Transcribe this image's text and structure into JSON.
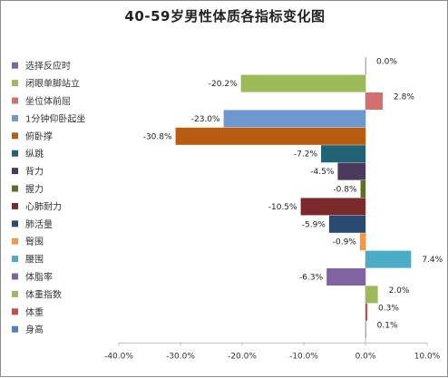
{
  "chart_data": {
    "type": "bar",
    "orientation": "horizontal",
    "title": "40-59岁男性体质各指标变化图",
    "xlim": [
      -40,
      10
    ],
    "x_ticks": [
      "-40.0%",
      "-30.0%",
      "-20.0%",
      "-10.0%",
      "0.0%",
      "10.0%"
    ],
    "x_tick_values": [
      -40,
      -30,
      -20,
      -10,
      0,
      10
    ],
    "grid": false,
    "legend": "left",
    "categories": [
      "选择反应时",
      "闭眼单脚站立",
      "坐位体前屈",
      "1分钟仰卧起坐",
      "俯卧撑",
      "纵跳",
      "背力",
      "握力",
      "心肺耐力",
      "肺活量",
      "臀围",
      "腰围",
      "体脂率",
      "体重指数",
      "体重",
      "身高"
    ],
    "values": [
      0.0,
      -20.2,
      2.8,
      -23.0,
      -30.8,
      -7.2,
      -4.5,
      -0.8,
      -10.5,
      -5.9,
      -0.9,
      7.4,
      -6.3,
      2.0,
      0.3,
      0.1
    ],
    "value_labels": [
      "0.0%",
      "-20.2%",
      "2.8%",
      "-23.0%",
      "-30.8%",
      "-7.2%",
      "-4.5%",
      "-0.8%",
      "-10.5%",
      "-5.9%",
      "-0.9%",
      "7.4%",
      "-6.3%",
      "2.0%",
      "0.3%",
      "0.1%"
    ],
    "colors": [
      "#8064a2",
      "#9bbb59",
      "#d46f6f",
      "#6f97cf",
      "#b85c10",
      "#1f6374",
      "#4a3a5c",
      "#5d6e2a",
      "#7a2a2a",
      "#2a4a72",
      "#f79646",
      "#4bacc6",
      "#8064a2",
      "#9bbb59",
      "#c0504d",
      "#4f81bd"
    ]
  }
}
